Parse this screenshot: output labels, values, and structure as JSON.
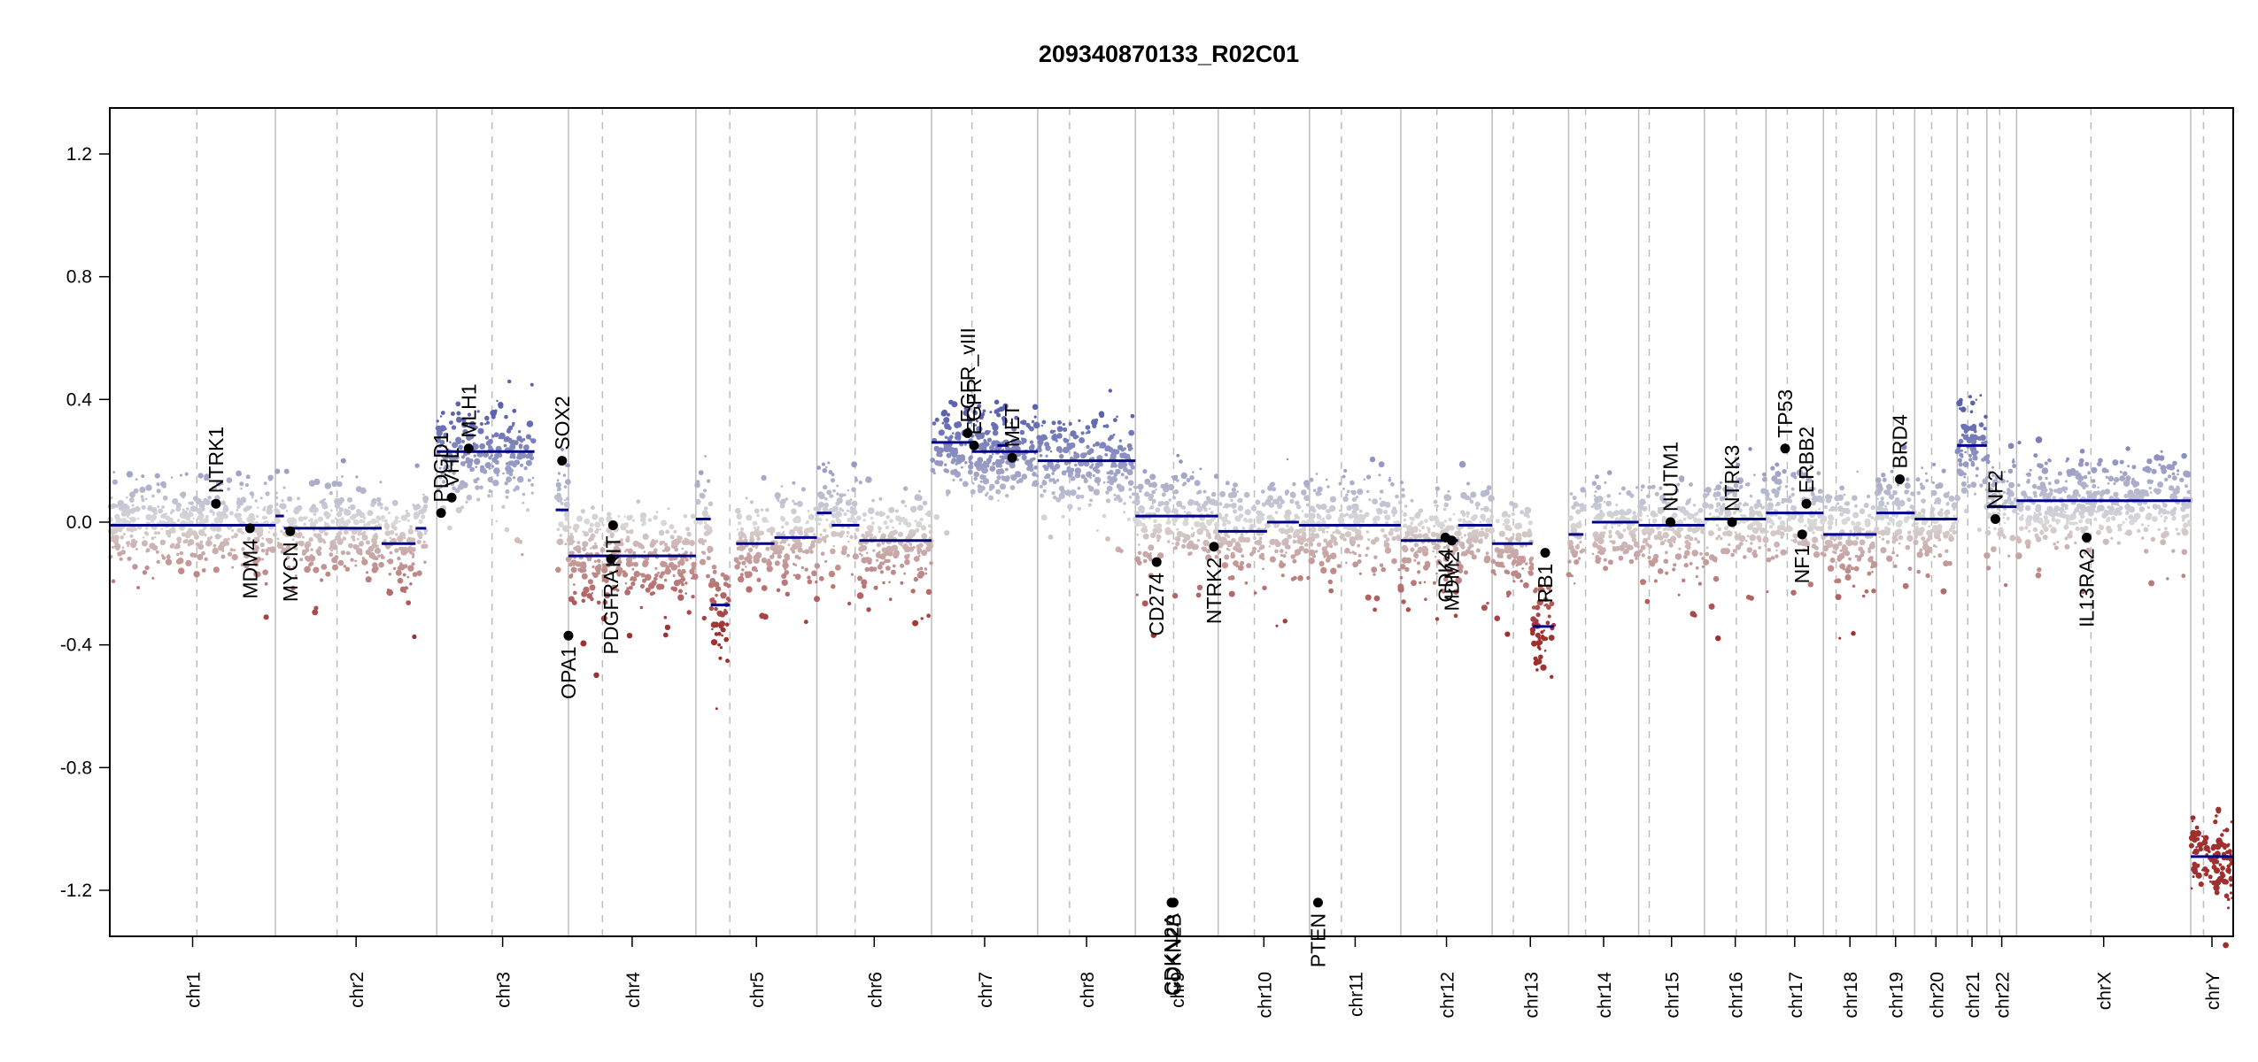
{
  "chart_data": {
    "type": "scatter",
    "title": "209340870133_R02C01",
    "xlabel": "",
    "ylabel": "",
    "ylim": [
      -1.35,
      1.35
    ],
    "y_ticks": [
      -1.2,
      -0.8,
      -0.4,
      0.0,
      0.4,
      0.8,
      1.2
    ],
    "y_tick_labels": [
      "-1.2",
      "-0.8",
      "-0.4",
      "0.0",
      "0.4",
      "0.8",
      "1.2"
    ],
    "xlim": [
      0,
      100
    ],
    "grid": false,
    "colors": {
      "gain": "#5b62b0",
      "neutral": "#d9d9d9",
      "loss": "#a0302e",
      "segment": "#00008b",
      "gene": "#000000",
      "boundary": "#bdbdbd"
    },
    "chromosomes": [
      {
        "name": "chr1",
        "start": 0.0,
        "end": 7.8
      },
      {
        "name": "chr2",
        "start": 7.8,
        "end": 15.4
      },
      {
        "name": "chr3",
        "start": 15.4,
        "end": 21.6
      },
      {
        "name": "chr4",
        "start": 21.6,
        "end": 27.6
      },
      {
        "name": "chr5",
        "start": 27.6,
        "end": 33.3
      },
      {
        "name": "chr6",
        "start": 33.3,
        "end": 38.7
      },
      {
        "name": "chr7",
        "start": 38.7,
        "end": 43.7
      },
      {
        "name": "chr8",
        "start": 43.7,
        "end": 48.3
      },
      {
        "name": "chr9",
        "start": 48.3,
        "end": 52.2
      },
      {
        "name": "chr10",
        "start": 52.2,
        "end": 56.5
      },
      {
        "name": "chr11",
        "start": 56.5,
        "end": 60.8
      },
      {
        "name": "chr12",
        "start": 60.8,
        "end": 65.1
      },
      {
        "name": "chr13",
        "start": 65.1,
        "end": 68.7
      },
      {
        "name": "chr14",
        "start": 68.7,
        "end": 72.0
      },
      {
        "name": "chr15",
        "start": 72.0,
        "end": 75.1
      },
      {
        "name": "chr16",
        "start": 75.1,
        "end": 78.0
      },
      {
        "name": "chr17",
        "start": 78.0,
        "end": 80.7
      },
      {
        "name": "chr18",
        "start": 80.7,
        "end": 83.2
      },
      {
        "name": "chr19",
        "start": 83.2,
        "end": 85.0
      },
      {
        "name": "chr20",
        "start": 85.0,
        "end": 87.0
      },
      {
        "name": "chr21",
        "start": 87.0,
        "end": 88.4
      },
      {
        "name": "chr22",
        "start": 88.4,
        "end": 89.8
      },
      {
        "name": "chrX",
        "start": 89.8,
        "end": 98.0
      },
      {
        "name": "chrY",
        "start": 98.0,
        "end": 100.0
      }
    ],
    "centromeres": [
      4.1,
      10.7,
      18.0,
      23.2,
      29.2,
      35.1,
      40.6,
      45.2,
      50.1,
      53.9,
      58.0,
      62.5,
      66.1,
      69.5,
      72.5,
      76.6,
      79.0,
      81.3,
      84.0,
      85.8,
      87.5,
      89.0,
      93.3,
      98.6
    ],
    "segments": [
      {
        "x0": 0.0,
        "x1": 7.8,
        "y": -0.01
      },
      {
        "x0": 7.8,
        "x1": 8.2,
        "y": 0.02
      },
      {
        "x0": 8.2,
        "x1": 12.8,
        "y": -0.02
      },
      {
        "x0": 12.8,
        "x1": 14.4,
        "y": -0.07
      },
      {
        "x0": 14.4,
        "x1": 14.9,
        "y": -0.02
      },
      {
        "x0": 15.4,
        "x1": 20.0,
        "y": 0.23
      },
      {
        "x0": 21.0,
        "x1": 21.6,
        "y": 0.04
      },
      {
        "x0": 21.6,
        "x1": 27.6,
        "y": -0.11
      },
      {
        "x0": 27.6,
        "x1": 28.3,
        "y": 0.01
      },
      {
        "x0": 28.3,
        "x1": 29.2,
        "y": -0.27
      },
      {
        "x0": 29.5,
        "x1": 31.3,
        "y": -0.07
      },
      {
        "x0": 31.3,
        "x1": 33.3,
        "y": -0.05
      },
      {
        "x0": 33.3,
        "x1": 34.0,
        "y": 0.03
      },
      {
        "x0": 34.0,
        "x1": 35.3,
        "y": -0.01
      },
      {
        "x0": 35.3,
        "x1": 38.7,
        "y": -0.06
      },
      {
        "x0": 38.7,
        "x1": 40.6,
        "y": 0.26
      },
      {
        "x0": 41.8,
        "x1": 42.3,
        "y": 0.25
      },
      {
        "x0": 40.6,
        "x1": 43.7,
        "y": 0.23
      },
      {
        "x0": 43.7,
        "x1": 48.3,
        "y": 0.2
      },
      {
        "x0": 48.3,
        "x1": 52.2,
        "y": 0.02
      },
      {
        "x0": 52.2,
        "x1": 54.5,
        "y": -0.03
      },
      {
        "x0": 54.5,
        "x1": 56.0,
        "y": 0.0
      },
      {
        "x0": 56.0,
        "x1": 60.8,
        "y": -0.01
      },
      {
        "x0": 60.8,
        "x1": 63.5,
        "y": -0.06
      },
      {
        "x0": 63.5,
        "x1": 65.1,
        "y": -0.01
      },
      {
        "x0": 65.1,
        "x1": 67.0,
        "y": -0.07
      },
      {
        "x0": 67.0,
        "x1": 68.0,
        "y": -0.34
      },
      {
        "x0": 68.7,
        "x1": 69.4,
        "y": -0.04
      },
      {
        "x0": 69.8,
        "x1": 72.0,
        "y": 0.0
      },
      {
        "x0": 72.0,
        "x1": 75.1,
        "y": -0.01
      },
      {
        "x0": 75.1,
        "x1": 78.0,
        "y": 0.01
      },
      {
        "x0": 78.0,
        "x1": 80.7,
        "y": 0.03
      },
      {
        "x0": 80.7,
        "x1": 83.2,
        "y": -0.04
      },
      {
        "x0": 83.2,
        "x1": 85.0,
        "y": 0.03
      },
      {
        "x0": 85.0,
        "x1": 87.0,
        "y": 0.01
      },
      {
        "x0": 87.0,
        "x1": 88.4,
        "y": 0.25
      },
      {
        "x0": 88.4,
        "x1": 89.8,
        "y": 0.05
      },
      {
        "x0": 89.8,
        "x1": 98.0,
        "y": 0.07
      },
      {
        "x0": 98.0,
        "x1": 100.0,
        "y": -1.09
      }
    ],
    "genes": [
      {
        "name": "NTRK1",
        "x": 5.0,
        "y": 0.06
      },
      {
        "name": "MDM4",
        "x": 6.6,
        "y": -0.02
      },
      {
        "name": "MYCN",
        "x": 8.5,
        "y": -0.03
      },
      {
        "name": "PDGD1",
        "x": 15.6,
        "y": 0.03
      },
      {
        "name": "VHL",
        "x": 16.1,
        "y": 0.08
      },
      {
        "name": "MLH1",
        "x": 16.9,
        "y": 0.24
      },
      {
        "name": "SOX2",
        "x": 21.3,
        "y": 0.2
      },
      {
        "name": "OPA1",
        "x": 21.6,
        "y": -0.37
      },
      {
        "name": "PDGFRA",
        "x": 23.6,
        "y": -0.12
      },
      {
        "name": "KIT",
        "x": 23.7,
        "y": -0.01
      },
      {
        "name": "EGFR_vIII",
        "x": 40.4,
        "y": 0.29
      },
      {
        "name": "EGFR",
        "x": 40.7,
        "y": 0.25
      },
      {
        "name": "MET",
        "x": 42.5,
        "y": 0.21
      },
      {
        "name": "CD274",
        "x": 49.3,
        "y": -0.13
      },
      {
        "name": "CDKN2A",
        "x": 50.0,
        "y": -1.24
      },
      {
        "name": "CDKN2B",
        "x": 50.1,
        "y": -1.24
      },
      {
        "name": "NTRK2",
        "x": 52.0,
        "y": -0.08
      },
      {
        "name": "PTEN",
        "x": 56.9,
        "y": -1.24
      },
      {
        "name": "CDK4",
        "x": 62.9,
        "y": -0.05
      },
      {
        "name": "MDM2",
        "x": 63.2,
        "y": -0.06
      },
      {
        "name": "RB1",
        "x": 67.6,
        "y": -0.1
      },
      {
        "name": "NUTM1",
        "x": 73.5,
        "y": 0.0
      },
      {
        "name": "NTRK3",
        "x": 76.4,
        "y": 0.0
      },
      {
        "name": "TP53",
        "x": 78.9,
        "y": 0.24
      },
      {
        "name": "NF1",
        "x": 79.7,
        "y": -0.04
      },
      {
        "name": "ERBB2",
        "x": 79.9,
        "y": 0.06
      },
      {
        "name": "BRD4",
        "x": 84.3,
        "y": 0.14
      },
      {
        "name": "NF2",
        "x": 88.8,
        "y": 0.01
      },
      {
        "name": "IL13RA2",
        "x": 93.1,
        "y": -0.05
      }
    ]
  }
}
